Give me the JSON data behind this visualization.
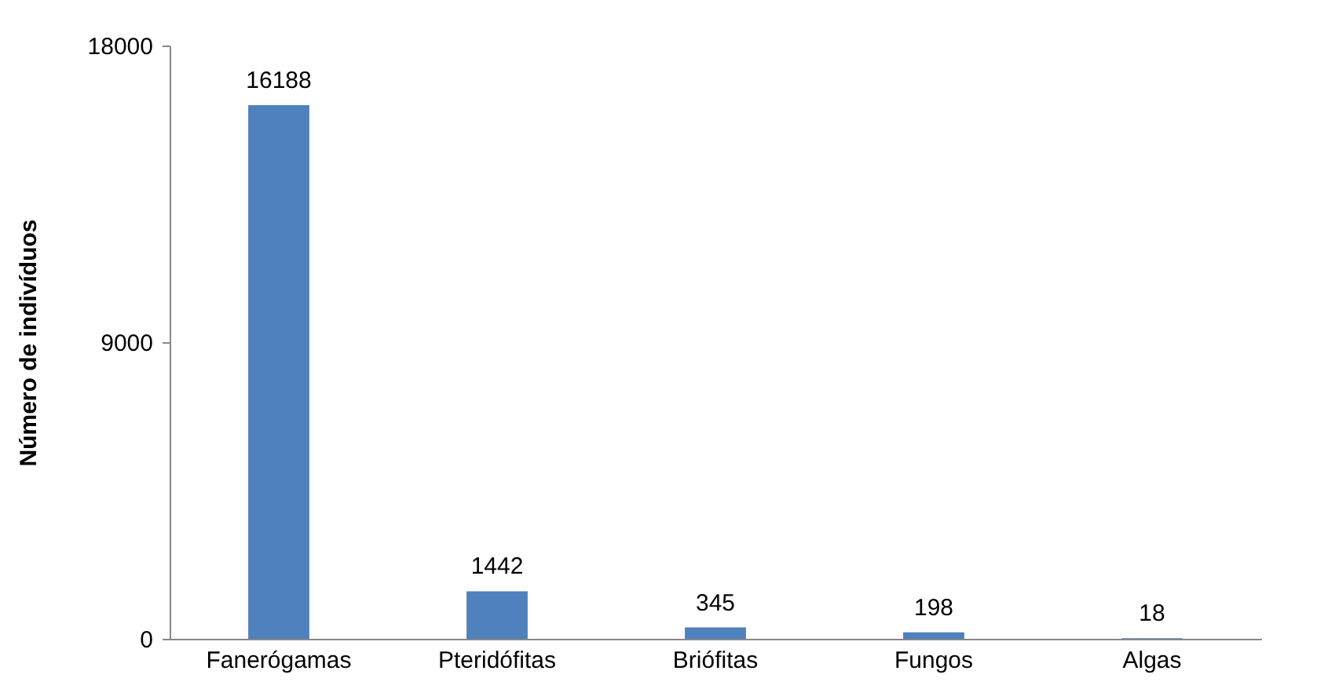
{
  "chart_data": {
    "type": "bar",
    "ylabel": "Número de indivíduos",
    "categories": [
      "Fanerógamas",
      "Pteridófitas",
      "Briófitas",
      "Fungos",
      "Algas"
    ],
    "values": [
      16188,
      1442,
      345,
      198,
      18
    ],
    "color": "#4f81bd",
    "ylim": [
      0,
      18000
    ],
    "yticks": [
      0,
      9000,
      18000
    ],
    "grid": false,
    "data_labels": true
  }
}
